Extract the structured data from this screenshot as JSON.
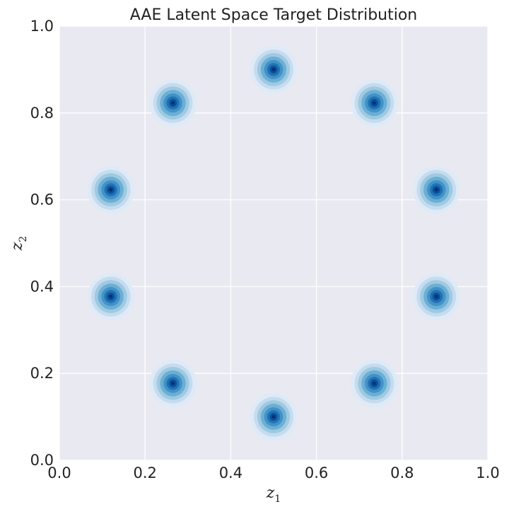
{
  "chart_data": {
    "type": "contour",
    "title": "AAE Latent Space Target Distribution",
    "xlabel": {
      "base": "z",
      "sub": "1"
    },
    "ylabel": {
      "base": "z",
      "sub": "2"
    },
    "xlim": [
      0.0,
      1.0
    ],
    "ylim": [
      0.0,
      1.0
    ],
    "xticks": [
      "0.0",
      "0.2",
      "0.4",
      "0.6",
      "0.8",
      "1.0"
    ],
    "yticks": [
      "0.0",
      "0.2",
      "0.4",
      "0.6",
      "0.8",
      "1.0"
    ],
    "grid": true,
    "colormap": "Blues",
    "background_color": "#e9e9f1",
    "grid_color": "#ffffff",
    "centers": [
      {
        "x": 0.5,
        "y": 0.9
      },
      {
        "x": 0.735,
        "y": 0.823
      },
      {
        "x": 0.88,
        "y": 0.623
      },
      {
        "x": 0.88,
        "y": 0.377
      },
      {
        "x": 0.735,
        "y": 0.177
      },
      {
        "x": 0.5,
        "y": 0.1
      },
      {
        "x": 0.265,
        "y": 0.177
      },
      {
        "x": 0.12,
        "y": 0.377
      },
      {
        "x": 0.12,
        "y": 0.623
      },
      {
        "x": 0.265,
        "y": 0.823
      }
    ],
    "contour_levels": [
      {
        "radius": 0.055,
        "color": "#deebf7"
      },
      {
        "radius": 0.046,
        "color": "#c6dbef"
      },
      {
        "radius": 0.038,
        "color": "#9ecae1"
      },
      {
        "radius": 0.03,
        "color": "#6baed6"
      },
      {
        "radius": 0.022,
        "color": "#4292c6"
      },
      {
        "radius": 0.015,
        "color": "#2171b5"
      },
      {
        "radius": 0.009,
        "color": "#08519c"
      },
      {
        "radius": 0.004,
        "color": "#08306b"
      }
    ]
  }
}
